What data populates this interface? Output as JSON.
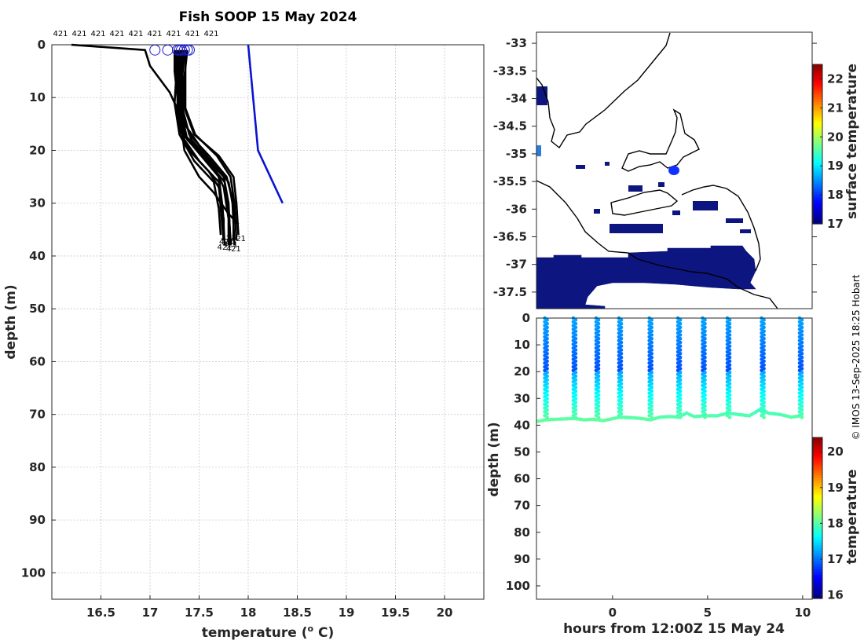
{
  "title": "Fish SOOP 15 May 2024",
  "credit": "© IMOS 13-Sep-2025 18:25 Hobart",
  "colors": {
    "profile": "#000000",
    "climatology": "#0a14d2",
    "marker": "#1a1ad0"
  },
  "chart_data": [
    {
      "id": "profiles",
      "type": "line",
      "xlabel": "temperature (° C)",
      "ylabel": "depth (m)",
      "xlim": [
        16,
        20.4
      ],
      "ylim": [
        0,
        105
      ],
      "y_reversed": true,
      "grid": true,
      "xticks": [
        16.5,
        17,
        17.5,
        18,
        18.5,
        19,
        19.5,
        20
      ],
      "yticks": [
        0,
        10,
        20,
        30,
        40,
        50,
        60,
        70,
        80,
        90,
        100
      ],
      "station_labels": [
        "421",
        "421",
        "421",
        "421",
        "421",
        "421",
        "421",
        "421",
        "421"
      ],
      "end_label": "421",
      "surface_markers": [
        17.05,
        17.18,
        17.28,
        17.3,
        17.32,
        17.35,
        17.38,
        17.4
      ],
      "climatology": {
        "temperature": [
          18.0,
          18.1,
          18.35
        ],
        "depth": [
          0,
          20,
          30
        ]
      },
      "series": [
        {
          "temperature": [
            16.2,
            16.95,
            17.0,
            17.2,
            17.3,
            17.35,
            17.5,
            17.65,
            17.8,
            17.9
          ],
          "depth": [
            0,
            1,
            4,
            9,
            13,
            20,
            25,
            28,
            32,
            34
          ]
        },
        {
          "temperature": [
            17.25,
            17.25,
            17.28,
            17.3,
            17.4,
            17.6,
            17.7,
            17.75,
            17.75
          ],
          "depth": [
            1,
            5,
            10,
            16,
            20,
            24,
            27,
            33,
            37
          ]
        },
        {
          "temperature": [
            17.3,
            17.3,
            17.32,
            17.35,
            17.5,
            17.65,
            17.75,
            17.8,
            17.8
          ],
          "depth": [
            1,
            5,
            10,
            15,
            19,
            23,
            27,
            33,
            38
          ]
        },
        {
          "temperature": [
            17.32,
            17.3,
            17.3,
            17.35,
            17.55,
            17.75,
            17.8,
            17.82
          ],
          "depth": [
            1,
            6,
            12,
            17,
            21,
            25,
            30,
            38
          ]
        },
        {
          "temperature": [
            17.35,
            17.33,
            17.33,
            17.4,
            17.6,
            17.78,
            17.85,
            17.85
          ],
          "depth": [
            1,
            6,
            12,
            17,
            21,
            25,
            30,
            37
          ]
        },
        {
          "temperature": [
            17.38,
            17.35,
            17.35,
            17.45,
            17.7,
            17.85,
            17.88,
            17.9
          ],
          "depth": [
            1,
            6,
            12,
            17,
            21,
            25,
            30,
            36
          ]
        },
        {
          "temperature": [
            17.3,
            17.28,
            17.28,
            17.35,
            17.5,
            17.7,
            17.72,
            17.75
          ],
          "depth": [
            1,
            7,
            13,
            18,
            22,
            26,
            31,
            37
          ]
        },
        {
          "temperature": [
            17.27,
            17.27,
            17.25,
            17.3,
            17.45,
            17.65,
            17.7,
            17.72
          ],
          "depth": [
            1,
            5,
            11,
            17,
            22,
            26,
            31,
            36
          ]
        },
        {
          "temperature": [
            17.33,
            17.33,
            17.32,
            17.42,
            17.62,
            17.8,
            17.84,
            17.86
          ],
          "depth": [
            1,
            6,
            12,
            18,
            22,
            26,
            30,
            38
          ]
        },
        {
          "temperature": [
            17.36,
            17.36,
            17.36,
            17.46,
            17.68,
            17.82,
            17.86,
            17.88
          ],
          "depth": [
            1,
            6,
            12,
            17,
            21,
            25,
            30,
            37
          ]
        },
        {
          "temperature": [
            17.29,
            17.29,
            17.3,
            17.34,
            17.52,
            17.7,
            17.74,
            17.76
          ],
          "depth": [
            1,
            6,
            12,
            17,
            21,
            25,
            31,
            38
          ]
        },
        {
          "temperature": [
            17.31,
            17.31,
            17.31,
            17.38,
            17.58,
            17.76,
            17.8,
            17.82
          ],
          "depth": [
            1,
            6,
            12,
            18,
            22,
            26,
            31,
            37
          ]
        }
      ]
    },
    {
      "id": "map",
      "type": "heatmap",
      "colorbar_label": "surface temperature",
      "ylim": [
        -37.8,
        -32.8
      ],
      "xlim": [
        138.8,
        141.4
      ],
      "yticks": [
        -33,
        -33.5,
        -34,
        -34.5,
        -35,
        -35.5,
        -36,
        -36.5,
        -37,
        -37.5
      ],
      "colorbar_ticks": [
        17,
        18,
        19,
        20,
        21,
        22
      ],
      "colorbar_range": [
        17,
        22.5
      ]
    },
    {
      "id": "timeseries",
      "type": "scatter",
      "xlabel": "hours from 12:00Z 15 May 24",
      "ylabel": "depth (m)",
      "colorbar_label": "temperature",
      "xlim": [
        -4,
        10.5
      ],
      "ylim": [
        0,
        105
      ],
      "y_reversed": true,
      "xticks": [
        0,
        5,
        10
      ],
      "yticks": [
        0,
        10,
        20,
        30,
        40,
        50,
        60,
        70,
        80,
        90,
        100
      ],
      "colorbar_ticks": [
        16,
        17,
        18,
        19,
        20
      ],
      "colorbar_range": [
        15.9,
        20.4
      ],
      "casts": [
        -3.5,
        -2.0,
        -0.8,
        0.4,
        2.0,
        3.5,
        4.8,
        6.1,
        7.9,
        9.9
      ],
      "bottom_depth": [
        [
          -3.9,
          38.5
        ],
        [
          -3.5,
          38.0
        ],
        [
          -3.0,
          37.8
        ],
        [
          -2.0,
          37.5
        ],
        [
          -1.5,
          38.0
        ],
        [
          -1.0,
          37.8
        ],
        [
          -0.8,
          38.0
        ],
        [
          -0.5,
          38.3
        ],
        [
          0.0,
          37.6
        ],
        [
          0.4,
          37.0
        ],
        [
          1.0,
          37.2
        ],
        [
          1.5,
          37.5
        ],
        [
          2.0,
          38.0
        ],
        [
          2.5,
          37.0
        ],
        [
          3.0,
          36.8
        ],
        [
          3.5,
          37.0
        ],
        [
          3.9,
          35.5
        ],
        [
          4.3,
          36.8
        ],
        [
          4.8,
          36.5
        ],
        [
          5.5,
          36.5
        ],
        [
          6.1,
          35.5
        ],
        [
          6.6,
          36.0
        ],
        [
          7.2,
          36.5
        ],
        [
          7.8,
          34.0
        ],
        [
          8.2,
          35.5
        ],
        [
          8.8,
          36.0
        ],
        [
          9.4,
          37.0
        ],
        [
          9.9,
          36.5
        ],
        [
          10.0,
          37.0
        ]
      ]
    }
  ]
}
